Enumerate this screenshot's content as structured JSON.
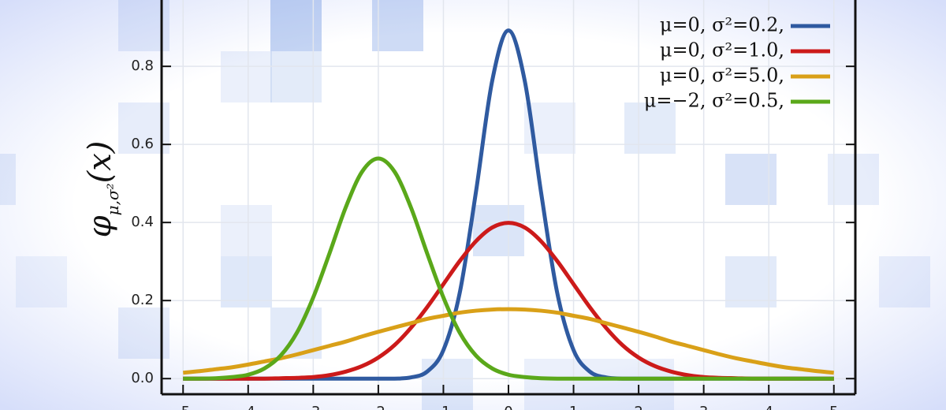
{
  "chart_data": {
    "type": "line",
    "y_label": "φ",
    "y_label_sub": "μ,σ²",
    "y_label_arg": "(x)",
    "x": [
      -5,
      -4.75,
      -4.5,
      -4.25,
      -4,
      -3.75,
      -3.5,
      -3.25,
      -3,
      -2.75,
      -2.5,
      -2.25,
      -2,
      -1.75,
      -1.5,
      -1.25,
      -1,
      -0.75,
      -0.5,
      -0.25,
      0,
      0.25,
      0.5,
      0.75,
      1,
      1.25,
      1.5,
      1.75,
      2,
      2.25,
      2.5,
      2.75,
      3,
      3.25,
      3.5,
      3.75,
      4,
      4.25,
      4.5,
      4.75,
      5
    ],
    "series": [
      {
        "name": "μ=0,   σ²=0.2,",
        "color": "#2f5aa0",
        "values": [
          0,
          0,
          0,
          0,
          0,
          0,
          0,
          0,
          0,
          0,
          0,
          0,
          0,
          0,
          0.003,
          0.018,
          0.073,
          0.219,
          0.478,
          0.763,
          0.892,
          0.763,
          0.478,
          0.219,
          0.073,
          0.018,
          0.003,
          0,
          0,
          0,
          0,
          0,
          0,
          0,
          0,
          0,
          0,
          0,
          0,
          0,
          0
        ]
      },
      {
        "name": "μ=0,   σ²=1.0,",
        "color": "#cc1a1a",
        "values": [
          0,
          0,
          0,
          0,
          0,
          0,
          0.001,
          0.002,
          0.004,
          0.009,
          0.018,
          0.032,
          0.054,
          0.086,
          0.13,
          0.183,
          0.242,
          0.301,
          0.352,
          0.387,
          0.399,
          0.387,
          0.352,
          0.301,
          0.242,
          0.183,
          0.13,
          0.086,
          0.054,
          0.032,
          0.018,
          0.009,
          0.004,
          0.002,
          0.001,
          0,
          0,
          0,
          0,
          0,
          0
        ]
      },
      {
        "name": "μ=0,   σ²=5.0,",
        "color": "#d9a018",
        "values": [
          0.015,
          0.019,
          0.024,
          0.029,
          0.036,
          0.044,
          0.052,
          0.062,
          0.073,
          0.084,
          0.095,
          0.108,
          0.12,
          0.131,
          0.142,
          0.153,
          0.161,
          0.169,
          0.174,
          0.177,
          0.178,
          0.177,
          0.174,
          0.169,
          0.161,
          0.153,
          0.142,
          0.131,
          0.12,
          0.108,
          0.095,
          0.084,
          0.073,
          0.062,
          0.052,
          0.044,
          0.036,
          0.029,
          0.024,
          0.019,
          0.015
        ]
      },
      {
        "name": "μ=−2, σ²=0.5,",
        "color": "#5aa81a",
        "values": [
          0,
          0,
          0.001,
          0.004,
          0.01,
          0.026,
          0.059,
          0.118,
          0.208,
          0.321,
          0.439,
          0.53,
          0.564,
          0.53,
          0.439,
          0.321,
          0.208,
          0.118,
          0.059,
          0.026,
          0.01,
          0.004,
          0.001,
          0,
          0,
          0,
          0,
          0,
          0,
          0,
          0,
          0,
          0,
          0,
          0,
          0,
          0,
          0,
          0,
          0,
          0
        ]
      }
    ],
    "xlim": [
      -5.33,
      5.33
    ],
    "ylim": [
      -0.04,
      0.97
    ],
    "xticks": [
      -5,
      -4,
      -3,
      -2,
      -1,
      0,
      1,
      2,
      3,
      4,
      5
    ],
    "yticks": [
      {
        "value": 0,
        "label": "0.0"
      },
      0.2,
      0.4,
      0.6,
      0.8
    ],
    "grid": true,
    "legend": "upper right"
  }
}
